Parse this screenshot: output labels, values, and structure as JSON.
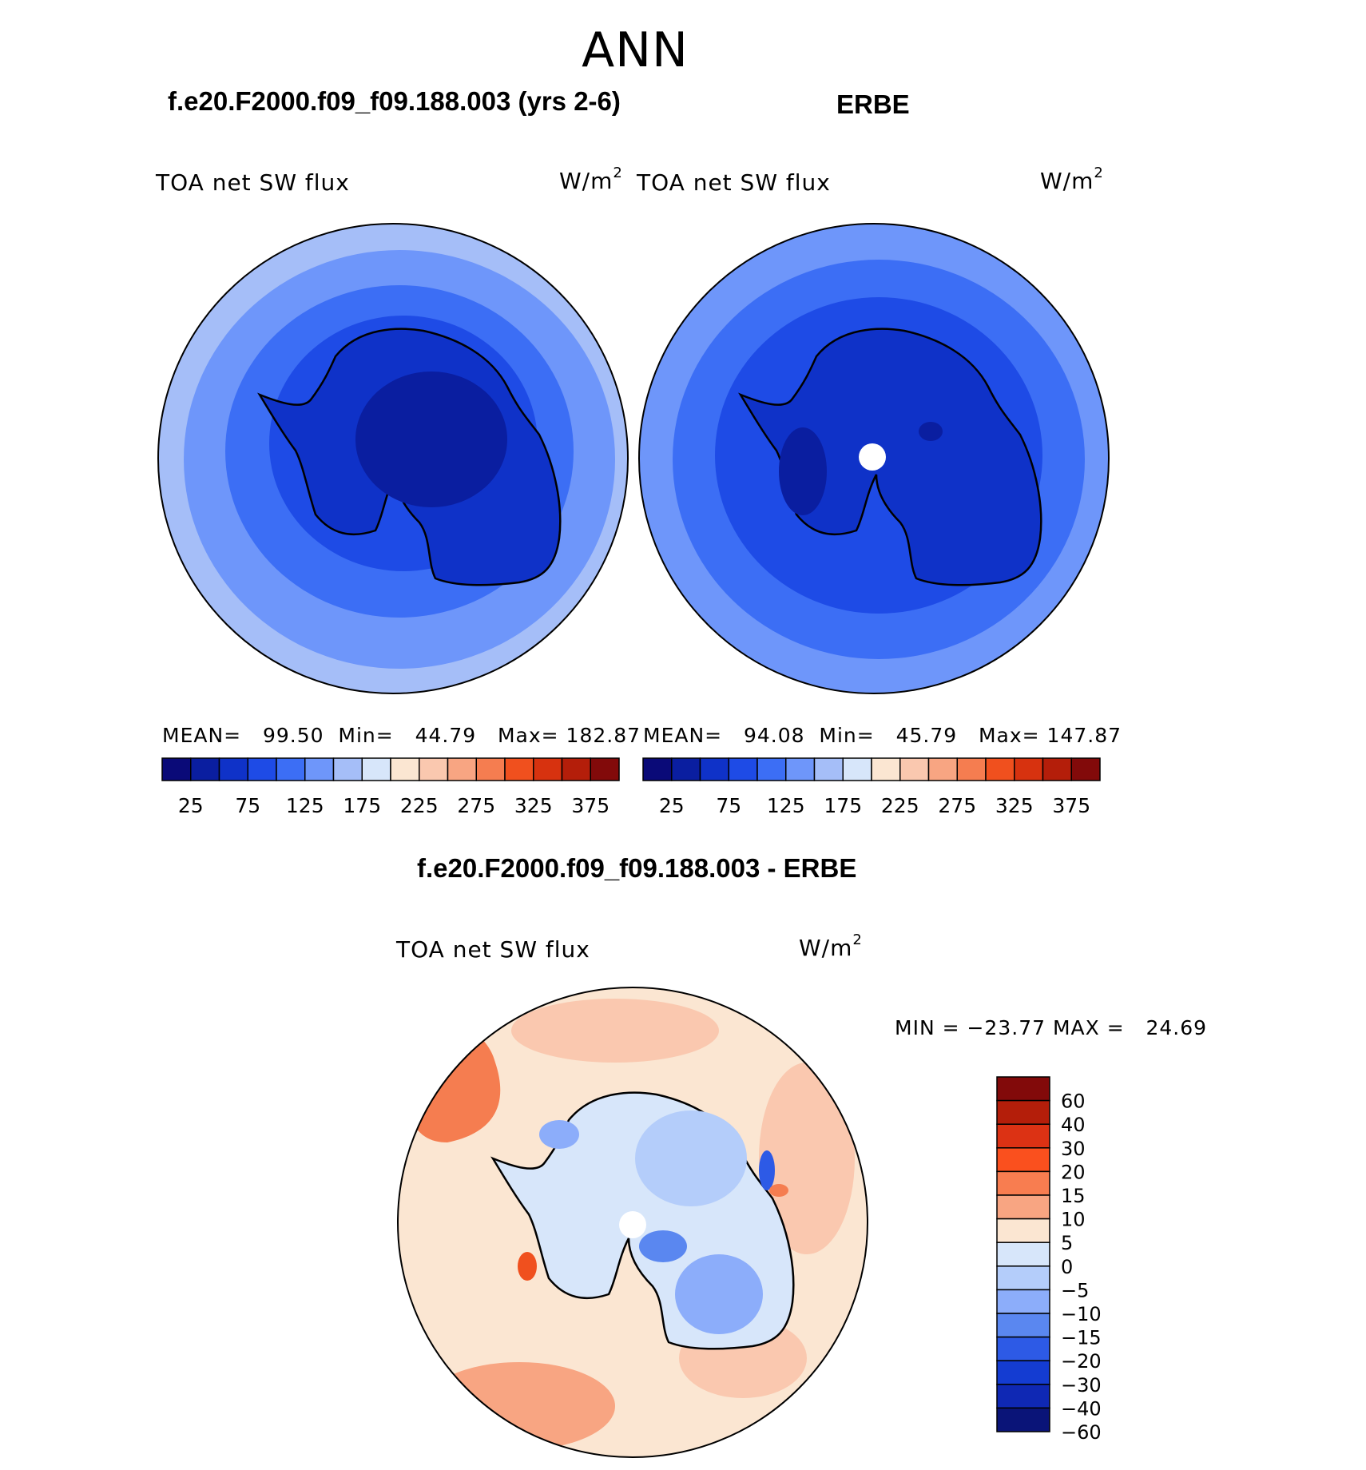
{
  "season": "ANN",
  "panels": [
    {
      "title": "f.e20.F2000.f09_f09.188.003 (yrs 2-6)",
      "variable": "TOA net SW flux",
      "units_base": "W/m",
      "units_exp": "2",
      "stats": "MEAN=   99.50  Min=   44.79   Max= 182.87"
    },
    {
      "title": "ERBE",
      "variable": "TOA net SW flux",
      "units_base": "W/m",
      "units_exp": "2",
      "stats": "MEAN=   94.08  Min=   45.79   Max= 147.87"
    }
  ],
  "diff": {
    "title": "f.e20.F2000.f09_f09.188.003 - ERBE",
    "variable": "TOA net SW flux",
    "units_base": "W/m",
    "units_exp": "2",
    "minmax": "MIN = −23.77 MAX =   24.69"
  },
  "colorbar_top": {
    "tick_labels": [
      "25",
      "75",
      "125",
      "175",
      "225",
      "275",
      "325",
      "375"
    ],
    "colors": [
      "#0a0a78",
      "#0a1ea0",
      "#0f32c8",
      "#1e4be6",
      "#3c6ef5",
      "#6e96fa",
      "#a5bef8",
      "#d7e6fa",
      "#fbe6d2",
      "#fac8af",
      "#f8a582",
      "#f57d50",
      "#f0501e",
      "#d7320f",
      "#b41e0a",
      "#820a0a"
    ]
  },
  "colorbar_diff": {
    "tick_labels": [
      "60",
      "40",
      "30",
      "20",
      "15",
      "10",
      "5",
      "0",
      "−5",
      "−10",
      "−15",
      "−20",
      "−30",
      "−40",
      "−60"
    ],
    "colors": [
      "#820a0a",
      "#b41e0a",
      "#dc3214",
      "#fa501e",
      "#f87d50",
      "#f8a582",
      "#fbe6d2",
      "#d7e6fa",
      "#b4cdfa",
      "#8cadfa",
      "#5a87f0",
      "#2d5ae6",
      "#143cd2",
      "#0f28b4",
      "#0a1478"
    ]
  }
}
